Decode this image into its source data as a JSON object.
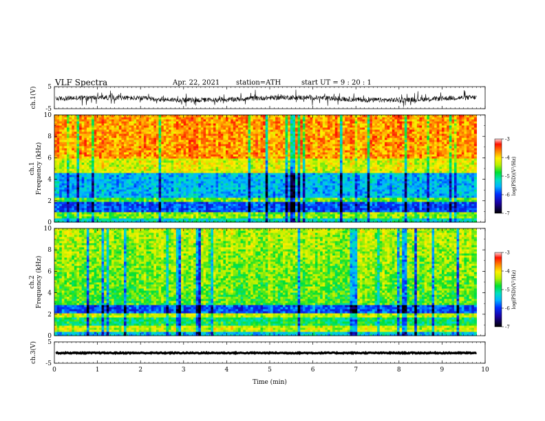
{
  "header": {
    "title": "VLF Spectra",
    "date": "Apr. 22, 2021",
    "station": "station=ATH",
    "start": "start UT = 9 : 20 : 1"
  },
  "chart_data": {
    "type": "heatmap",
    "xlabel": "Time (min)",
    "xlim": [
      0,
      10
    ],
    "x_ticks": [
      "0",
      "1",
      "2",
      "3",
      "4",
      "5",
      "6",
      "7",
      "8",
      "9",
      "10"
    ],
    "panels": [
      {
        "kind": "waveform",
        "ylabel": "ch.1(V)",
        "ylim": [
          -5,
          5
        ],
        "y_ticks": [
          "5",
          "-5"
        ]
      },
      {
        "kind": "spectrogram",
        "ylabel": [
          "ch.1",
          "Frequency (kHz)"
        ],
        "ylim": [
          0,
          10
        ],
        "y_ticks": [
          "0",
          "2",
          "4",
          "6",
          "8",
          "10"
        ],
        "colorbar": {
          "label": "log(PSD)(V²/Hz)",
          "range": [
            -7,
            -3
          ],
          "ticks": [
            "-3",
            "-4",
            "-5",
            "-6",
            "-7"
          ]
        }
      },
      {
        "kind": "spectrogram",
        "ylabel": [
          "ch.2",
          "Frequency (kHz)"
        ],
        "ylim": [
          0,
          10
        ],
        "y_ticks": [
          "0",
          "2",
          "4",
          "6",
          "8",
          "10"
        ],
        "colorbar": {
          "label": "log(PSD)(V²/Hz)",
          "range": [
            -7,
            -3
          ],
          "ticks": [
            "-3",
            "-4",
            "-5",
            "-6",
            "-7"
          ]
        }
      },
      {
        "kind": "waveform",
        "ylabel": "ch.3(V)",
        "ylim": [
          -5,
          5
        ],
        "y_ticks": [
          "5",
          "-5"
        ]
      }
    ],
    "data_end_min": 9.8
  }
}
